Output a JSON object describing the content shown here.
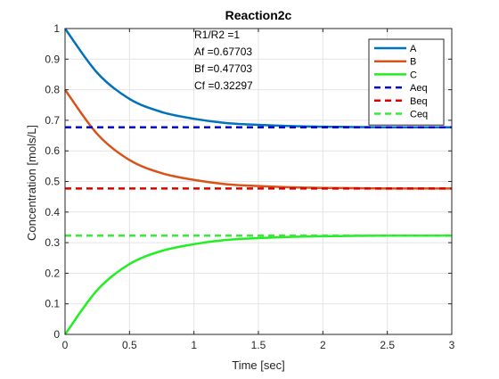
{
  "chart_data": {
    "type": "line",
    "title": "Reaction2c",
    "xlabel": "Time [sec]",
    "ylabel": "Concentration [mols/L]",
    "xlim": [
      0,
      3
    ],
    "ylim": [
      0,
      1
    ],
    "grid": true,
    "legend_position": "top-right",
    "x_ticks": [
      "0",
      "0.5",
      "1",
      "1.5",
      "2",
      "2.5",
      "3"
    ],
    "y_ticks": [
      "0",
      "0.1",
      "0.2",
      "0.3",
      "0.4",
      "0.5",
      "0.6",
      "0.7",
      "0.8",
      "0.9",
      "1"
    ],
    "annotation": [
      "R1/R2 =1",
      "Af =0.67703",
      "Bf =0.47703",
      "Cf =0.32297"
    ],
    "x": [
      0,
      0.25,
      0.5,
      0.75,
      1,
      1.25,
      1.5,
      1.75,
      2,
      2.25,
      2.5,
      2.75,
      3
    ],
    "series": [
      {
        "name": "A",
        "style": "solid",
        "color": "#0072BD",
        "values": [
          1,
          0.855,
          0.77,
          0.727,
          0.705,
          0.691,
          0.685,
          0.681,
          0.679,
          0.678,
          0.677,
          0.677,
          0.677
        ]
      },
      {
        "name": "B",
        "style": "solid",
        "color": "#D95319",
        "values": [
          0.8,
          0.655,
          0.57,
          0.527,
          0.505,
          0.491,
          0.485,
          0.481,
          0.479,
          0.478,
          0.477,
          0.477,
          0.477
        ]
      },
      {
        "name": "C",
        "style": "solid",
        "color": "#22EE22",
        "values": [
          0,
          0.145,
          0.23,
          0.273,
          0.295,
          0.309,
          0.315,
          0.319,
          0.321,
          0.322,
          0.323,
          0.323,
          0.323
        ]
      },
      {
        "name": "Aeq",
        "style": "dashed",
        "color": "#0000CC",
        "values": [
          0.677,
          0.677,
          0.677,
          0.677,
          0.677,
          0.677,
          0.677,
          0.677,
          0.677,
          0.677,
          0.677,
          0.677,
          0.677
        ]
      },
      {
        "name": "Beq",
        "style": "dashed",
        "color": "#DD0000",
        "values": [
          0.477,
          0.477,
          0.477,
          0.477,
          0.477,
          0.477,
          0.477,
          0.477,
          0.477,
          0.477,
          0.477,
          0.477,
          0.477
        ]
      },
      {
        "name": "Ceq",
        "style": "dashed",
        "color": "#33EE33",
        "values": [
          0.323,
          0.323,
          0.323,
          0.323,
          0.323,
          0.323,
          0.323,
          0.323,
          0.323,
          0.323,
          0.323,
          0.323,
          0.323
        ]
      }
    ]
  }
}
